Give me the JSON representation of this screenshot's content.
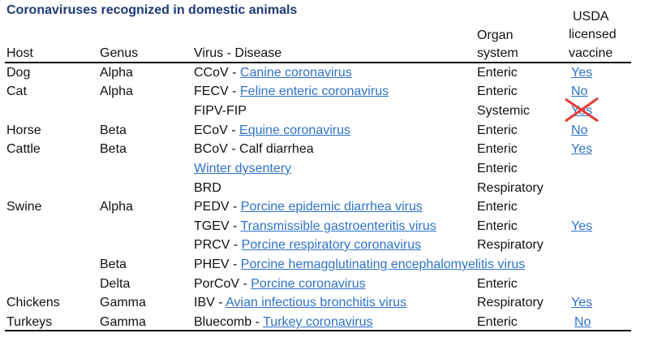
{
  "title": "Coronaviruses recognized in domestic animals",
  "headers": {
    "host": "Host",
    "genus": "Genus",
    "virus": "Virus - Disease",
    "organ_line1": "Organ",
    "organ_line2": "system",
    "usda_line1": "USDA",
    "usda_line2": "licensed",
    "usda_line3": "vaccine"
  },
  "rows": [
    {
      "host": "Dog",
      "genus": "Alpha",
      "abbr": "CCoV - ",
      "link": "Canine coronavirus",
      "organ": "Enteric",
      "vaccine": "Yes"
    },
    {
      "host": "Cat",
      "genus": "Alpha",
      "abbr": "FECV - ",
      "link": "Feline enteric coronavirus",
      "organ": "Enteric",
      "vaccine": "No"
    },
    {
      "host": "",
      "genus": "",
      "abbr": "FIPV-FIP",
      "link": "",
      "organ": "Systemic",
      "vaccine": "Yes"
    },
    {
      "host": "Horse",
      "genus": "Beta",
      "abbr": "ECoV - ",
      "link": "Equine coronavirus",
      "organ": "Enteric",
      "vaccine": "No"
    },
    {
      "host": "Cattle",
      "genus": "Beta",
      "abbr": "BCoV - Calf diarrhea",
      "link": "",
      "organ": "Enteric",
      "vaccine": "Yes"
    },
    {
      "host": "",
      "genus": "",
      "abbr": "",
      "link": "Winter dysentery",
      "organ": "Enteric",
      "vaccine": ""
    },
    {
      "host": "",
      "genus": "",
      "abbr": "BRD",
      "link": "",
      "organ": "Respiratory",
      "vaccine": ""
    },
    {
      "host": "Swine",
      "genus": "Alpha",
      "abbr": "PEDV - ",
      "link": "Porcine epidemic diarrhea virus",
      "organ": "Enteric",
      "vaccine": ""
    },
    {
      "host": "",
      "genus": "",
      "abbr": "TGEV - ",
      "link": "Transmissible gastroenteritis virus",
      "organ": "Enteric",
      "vaccine": "Yes"
    },
    {
      "host": "",
      "genus": "",
      "abbr": "PRCV - ",
      "link": "Porcine respiratory coronavirus",
      "organ": "Respiratory",
      "vaccine": ""
    },
    {
      "host": "",
      "genus": "Beta",
      "abbr": "PHEV - ",
      "link": "Porcine hemagglutinating encephalomyelitis virus",
      "organ": "",
      "vaccine": ""
    },
    {
      "host": "",
      "genus": "Delta",
      "abbr": "PorCoV - ",
      "link": "Porcine coronavirus",
      "organ": "Enteric",
      "vaccine": ""
    },
    {
      "host": "Chickens",
      "genus": "Gamma",
      "abbr": "IBV - ",
      "link": "Avian infectious bronchitis virus",
      "organ": "Respiratory",
      "vaccine": "Yes"
    },
    {
      "host": "Turkeys",
      "genus": "Gamma",
      "abbr": "Bluecomb - ",
      "link": "Turkey coronavirus",
      "organ": "Enteric",
      "vaccine": "No"
    }
  ],
  "colors": {
    "link": "#2e73c8",
    "title": "#1f3a78",
    "cross": "#e53935"
  }
}
